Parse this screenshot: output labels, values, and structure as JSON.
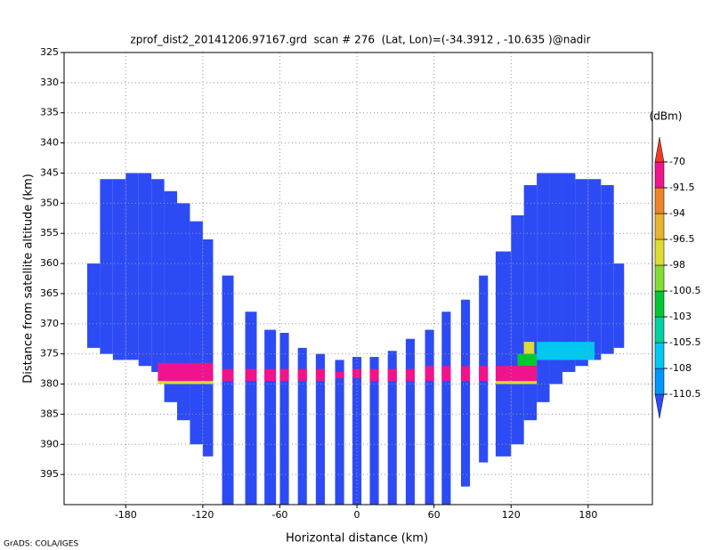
{
  "chart_data": {
    "type": "field",
    "title": "zprof_dist2_20141206.97167.grd  scan # 276  (Lat, Lon)=(-34.3912 , -10.635 )@nadir",
    "x_label": "Horizontal distance (km)",
    "y_label": "Distance from satellite altitude (km)",
    "footer": "GrADS: COLA/IGES",
    "xlim": [
      -228,
      230
    ],
    "ylim": [
      325,
      400
    ],
    "y_inverted": true,
    "xticks": [
      -180,
      -120,
      -60,
      0,
      60,
      120,
      180
    ],
    "yticks": [
      325,
      330,
      335,
      340,
      345,
      350,
      355,
      360,
      365,
      370,
      375,
      380,
      385,
      390,
      395
    ],
    "grid": true,
    "colorbar": {
      "unit": "(dBm)",
      "levels": [
        -110.5,
        -108,
        -105.5,
        -103,
        -100.5,
        -98,
        -96.5,
        -94,
        -91.5,
        -70
      ],
      "colors": [
        "#2d4bf5",
        "#0096ff",
        "#00c8f0",
        "#00d2a0",
        "#00c832",
        "#82dc32",
        "#dcdc32",
        "#e6b42d",
        "#f08228",
        "#f0148c",
        "#f03c28"
      ]
    },
    "cells": [
      {
        "x": [
          -210,
          -200
        ],
        "y": [
          360,
          374
        ],
        "value": -112
      },
      {
        "x": [
          -200,
          -190
        ],
        "y": [
          346,
          375
        ],
        "value": -112
      },
      {
        "x": [
          -190,
          -180
        ],
        "y": [
          346,
          376
        ],
        "value": -112
      },
      {
        "x": [
          -180,
          -170
        ],
        "y": [
          345,
          376
        ],
        "value": -112
      },
      {
        "x": [
          -170,
          -160
        ],
        "y": [
          345,
          377
        ],
        "value": -112
      },
      {
        "x": [
          -160,
          -150
        ],
        "y": [
          346,
          378
        ],
        "value": -112
      },
      {
        "x": [
          -150,
          -140
        ],
        "y": [
          348,
          383
        ],
        "value": -112
      },
      {
        "x": [
          -140,
          -130
        ],
        "y": [
          350,
          386
        ],
        "value": -112
      },
      {
        "x": [
          -130,
          -120
        ],
        "y": [
          353,
          390
        ],
        "value": -112
      },
      {
        "x": [
          -120,
          -112
        ],
        "y": [
          356,
          392
        ],
        "value": -112
      },
      {
        "x": [
          -105,
          -96
        ],
        "y": [
          362,
          400
        ],
        "value": -112
      },
      {
        "x": [
          -87,
          -78
        ],
        "y": [
          368,
          400
        ],
        "value": -112
      },
      {
        "x": [
          -72,
          -63
        ],
        "y": [
          371,
          400
        ],
        "value": -112
      },
      {
        "x": [
          -60,
          -53
        ],
        "y": [
          371.5,
          400
        ],
        "value": -112
      },
      {
        "x": [
          -46,
          -39
        ],
        "y": [
          374,
          400
        ],
        "value": -112
      },
      {
        "x": [
          -32,
          -25
        ],
        "y": [
          375,
          400
        ],
        "value": -112
      },
      {
        "x": [
          -17,
          -10
        ],
        "y": [
          376,
          400
        ],
        "value": -112
      },
      {
        "x": [
          -3.5,
          3.5
        ],
        "y": [
          375.5,
          400
        ],
        "value": -112
      },
      {
        "x": [
          10,
          17
        ],
        "y": [
          375.5,
          400
        ],
        "value": -112
      },
      {
        "x": [
          24,
          31
        ],
        "y": [
          374.5,
          400
        ],
        "value": -112
      },
      {
        "x": [
          38,
          45
        ],
        "y": [
          372.5,
          400
        ],
        "value": -112
      },
      {
        "x": [
          53,
          60
        ],
        "y": [
          371,
          400
        ],
        "value": -112
      },
      {
        "x": [
          66,
          73
        ],
        "y": [
          368,
          400
        ],
        "value": -112
      },
      {
        "x": [
          81,
          88
        ],
        "y": [
          366,
          397
        ],
        "value": -112
      },
      {
        "x": [
          95,
          102
        ],
        "y": [
          362,
          393
        ],
        "value": -112
      },
      {
        "x": [
          108,
          120
        ],
        "y": [
          358,
          392
        ],
        "value": -112
      },
      {
        "x": [
          120,
          130
        ],
        "y": [
          352,
          390
        ],
        "value": -112
      },
      {
        "x": [
          130,
          140
        ],
        "y": [
          347,
          386
        ],
        "value": -112
      },
      {
        "x": [
          140,
          150
        ],
        "y": [
          345,
          383
        ],
        "value": -112
      },
      {
        "x": [
          150,
          160
        ],
        "y": [
          345,
          380
        ],
        "value": -112
      },
      {
        "x": [
          160,
          170
        ],
        "y": [
          345,
          378
        ],
        "value": -112
      },
      {
        "x": [
          170,
          180
        ],
        "y": [
          346,
          377
        ],
        "value": -112
      },
      {
        "x": [
          180,
          190
        ],
        "y": [
          346,
          376
        ],
        "value": -112
      },
      {
        "x": [
          190,
          200
        ],
        "y": [
          347,
          375
        ],
        "value": -112
      },
      {
        "x": [
          200,
          208
        ],
        "y": [
          360,
          374
        ],
        "value": -112
      },
      {
        "x": [
          125,
          140
        ],
        "y": [
          375,
          377
        ],
        "value": -101
      },
      {
        "x": [
          130,
          138
        ],
        "y": [
          373,
          375
        ],
        "value": -97
      },
      {
        "x": [
          140,
          150
        ],
        "y": [
          373,
          376
        ],
        "value": -106
      },
      {
        "x": [
          150,
          185
        ],
        "y": [
          373,
          376
        ],
        "value": -107
      },
      {
        "x": [
          -155,
          -112
        ],
        "y": [
          376.5,
          379.5
        ],
        "value": -85
      },
      {
        "x": [
          -155,
          -112
        ],
        "y": [
          379.5,
          380
        ],
        "value": -97
      },
      {
        "x": [
          -105,
          -96
        ],
        "y": [
          377.5,
          379.5
        ],
        "value": -85
      },
      {
        "x": [
          -87,
          -78
        ],
        "y": [
          377.5,
          379.5
        ],
        "value": -85
      },
      {
        "x": [
          -72,
          -63
        ],
        "y": [
          377.5,
          379.5
        ],
        "value": -85
      },
      {
        "x": [
          -60,
          -53
        ],
        "y": [
          377.5,
          379.5
        ],
        "value": -85
      },
      {
        "x": [
          -46,
          -39
        ],
        "y": [
          377.5,
          379.5
        ],
        "value": -85
      },
      {
        "x": [
          -32,
          -25
        ],
        "y": [
          377.5,
          379.5
        ],
        "value": -85
      },
      {
        "x": [
          -17,
          -10
        ],
        "y": [
          378,
          379
        ],
        "value": -85
      },
      {
        "x": [
          -3.5,
          3.5
        ],
        "y": [
          377.5,
          379
        ],
        "value": -85
      },
      {
        "x": [
          10,
          17
        ],
        "y": [
          377.5,
          379.5
        ],
        "value": -85
      },
      {
        "x": [
          24,
          31
        ],
        "y": [
          377.5,
          379.5
        ],
        "value": -85
      },
      {
        "x": [
          38,
          45
        ],
        "y": [
          377.5,
          379.5
        ],
        "value": -85
      },
      {
        "x": [
          53,
          60
        ],
        "y": [
          377,
          379.5
        ],
        "value": -85
      },
      {
        "x": [
          66,
          73
        ],
        "y": [
          377,
          379.5
        ],
        "value": -85
      },
      {
        "x": [
          81,
          88
        ],
        "y": [
          377,
          379.5
        ],
        "value": -85
      },
      {
        "x": [
          95,
          102
        ],
        "y": [
          377,
          379.5
        ],
        "value": -85
      },
      {
        "x": [
          108,
          140
        ],
        "y": [
          377,
          379.5
        ],
        "value": -85
      },
      {
        "x": [
          108,
          140
        ],
        "y": [
          379.5,
          380
        ],
        "value": -97
      }
    ]
  }
}
